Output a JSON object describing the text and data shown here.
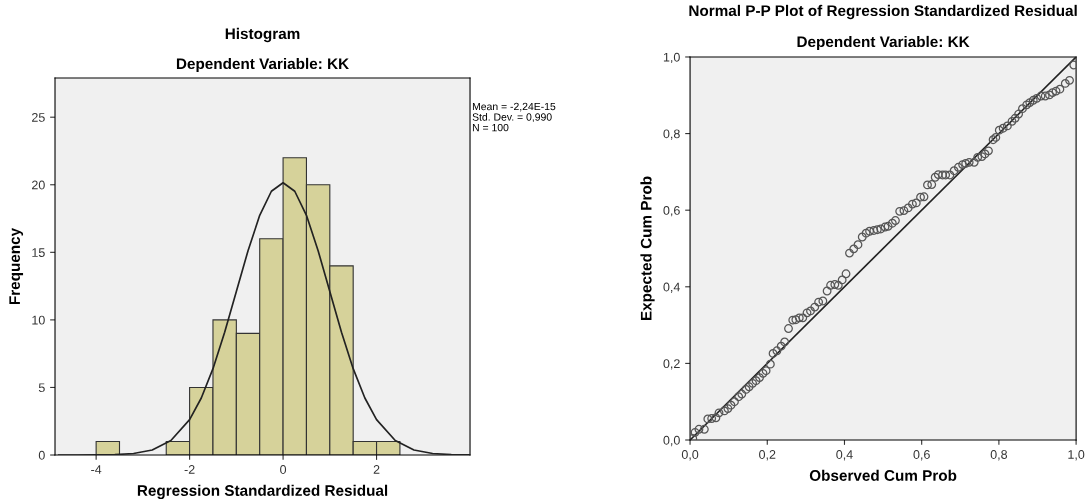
{
  "chart_data": [
    {
      "type": "histogram",
      "title": "Histogram",
      "subtitle": "Dependent Variable: KK",
      "xlabel": "Regression Standardized Residual",
      "ylabel": "Frequency",
      "bins": [
        -4,
        -3.5,
        -3,
        -2.5,
        -2,
        -1.5,
        -1,
        -0.5,
        0,
        0.5,
        1,
        1.5,
        2,
        2.5
      ],
      "series": [
        {
          "color": "#d6d29a",
          "values": [
            1,
            0,
            0,
            1,
            5,
            10,
            9,
            16,
            22,
            20,
            14,
            1,
            1
          ]
        },
        {
          "type": "line",
          "color": "#222222",
          "x": [
            -4.8,
            -4.4,
            -4.0,
            -3.6,
            -3.2,
            -2.8,
            -2.4,
            -2.0,
            -1.75,
            -1.5,
            -1.25,
            -1.0,
            -0.75,
            -0.5,
            -0.25,
            0,
            0.25,
            0.5,
            0.75,
            1.0,
            1.25,
            1.5,
            1.75,
            2.0,
            2.4,
            2.8,
            3.2,
            3.6,
            4.0
          ],
          "values": [
            0.0,
            0.0,
            0.01,
            0.03,
            0.11,
            0.37,
            1.07,
            2.62,
            4.22,
            6.39,
            9.08,
            12.1,
            15.12,
            17.74,
            19.52,
            20.15,
            19.52,
            17.74,
            15.12,
            12.1,
            9.08,
            6.39,
            4.22,
            2.62,
            1.07,
            0.37,
            0.11,
            0.03,
            0.01
          ]
        }
      ],
      "xlim": [
        -4.88,
        4.0
      ],
      "xticks": [
        -4,
        -2,
        0,
        2
      ],
      "ylim": [
        0,
        27.9
      ],
      "yticks": [
        0,
        5,
        10,
        15,
        20,
        25
      ],
      "grid": false,
      "legend": false,
      "annotations": [
        "Mean = -2,24E-15",
        "Std. Dev. = 0,990",
        "N = 100"
      ]
    },
    {
      "type": "scatter",
      "title": "Normal P-P Plot of Regression Standardized Residual",
      "subtitle": "Dependent Variable: KK",
      "xlabel": "Observed Cum Prob",
      "ylabel": "Expected Cum Prob",
      "grid": false,
      "legend": false,
      "series": [
        {
          "marker": "circle",
          "color": "#555555",
          "x": [
            0.007,
            0.013,
            0.023,
            0.037,
            0.046,
            0.056,
            0.067,
            0.075,
            0.089,
            0.098,
            0.106,
            0.115,
            0.126,
            0.134,
            0.145,
            0.153,
            0.162,
            0.171,
            0.18,
            0.189,
            0.197,
            0.208,
            0.215,
            0.225,
            0.236,
            0.245,
            0.255,
            0.266,
            0.274,
            0.283,
            0.292,
            0.303,
            0.312,
            0.323,
            0.333,
            0.344,
            0.355,
            0.364,
            0.375,
            0.384,
            0.394,
            0.404,
            0.413,
            0.424,
            0.435,
            0.446,
            0.456,
            0.465,
            0.476,
            0.485,
            0.494,
            0.505,
            0.513,
            0.524,
            0.532,
            0.543,
            0.554,
            0.565,
            0.576,
            0.586,
            0.597,
            0.606,
            0.615,
            0.626,
            0.635,
            0.643,
            0.654,
            0.662,
            0.673,
            0.684,
            0.695,
            0.706,
            0.714,
            0.723,
            0.736,
            0.745,
            0.756,
            0.764,
            0.773,
            0.785,
            0.792,
            0.801,
            0.811,
            0.822,
            0.834,
            0.842,
            0.851,
            0.861,
            0.872,
            0.88,
            0.889,
            0.898,
            0.909,
            0.92,
            0.931,
            0.939,
            0.948,
            0.958,
            0.972,
            0.983,
            0.994
          ],
          "values": [
            0.004,
            0.02,
            0.028,
            0.028,
            0.055,
            0.056,
            0.058,
            0.071,
            0.076,
            0.082,
            0.091,
            0.1,
            0.113,
            0.12,
            0.132,
            0.139,
            0.148,
            0.155,
            0.163,
            0.174,
            0.181,
            0.198,
            0.226,
            0.233,
            0.245,
            0.256,
            0.291,
            0.313,
            0.314,
            0.319,
            0.319,
            0.332,
            0.337,
            0.347,
            0.36,
            0.363,
            0.389,
            0.404,
            0.406,
            0.404,
            0.418,
            0.434,
            0.488,
            0.499,
            0.51,
            0.53,
            0.54,
            0.545,
            0.547,
            0.549,
            0.551,
            0.556,
            0.558,
            0.566,
            0.573,
            0.597,
            0.599,
            0.606,
            0.616,
            0.619,
            0.634,
            0.635,
            0.666,
            0.667,
            0.686,
            0.693,
            0.692,
            0.692,
            0.692,
            0.703,
            0.712,
            0.719,
            0.722,
            0.725,
            0.725,
            0.738,
            0.74,
            0.747,
            0.755,
            0.784,
            0.79,
            0.809,
            0.814,
            0.82,
            0.832,
            0.84,
            0.851,
            0.865,
            0.875,
            0.881,
            0.887,
            0.892,
            0.898,
            0.898,
            0.901,
            0.907,
            0.911,
            0.916,
            0.931,
            0.939,
            0.979
          ]
        },
        {
          "type": "line",
          "color": "#222222",
          "x": [
            0,
            1
          ],
          "values": [
            0,
            1
          ]
        }
      ],
      "xlim": [
        0,
        1
      ],
      "xticks": [
        {
          "value": 0,
          "label": "0,0"
        },
        {
          "value": 0.2,
          "label": "0,2"
        },
        {
          "value": 0.4,
          "label": "0,4"
        },
        {
          "value": 0.6,
          "label": "0,6"
        },
        {
          "value": 0.8,
          "label": "0,8"
        },
        {
          "value": 1,
          "label": "1,0"
        }
      ],
      "ylim": [
        0,
        1
      ],
      "yticks": [
        {
          "value": 0,
          "label": "0,0"
        },
        {
          "value": 0.2,
          "label": "0,2"
        },
        {
          "value": 0.4,
          "label": "0,4"
        },
        {
          "value": 0.6,
          "label": "0,6"
        },
        {
          "value": 0.8,
          "label": "0,8"
        },
        {
          "value": 1,
          "label": "1,0"
        }
      ]
    }
  ]
}
